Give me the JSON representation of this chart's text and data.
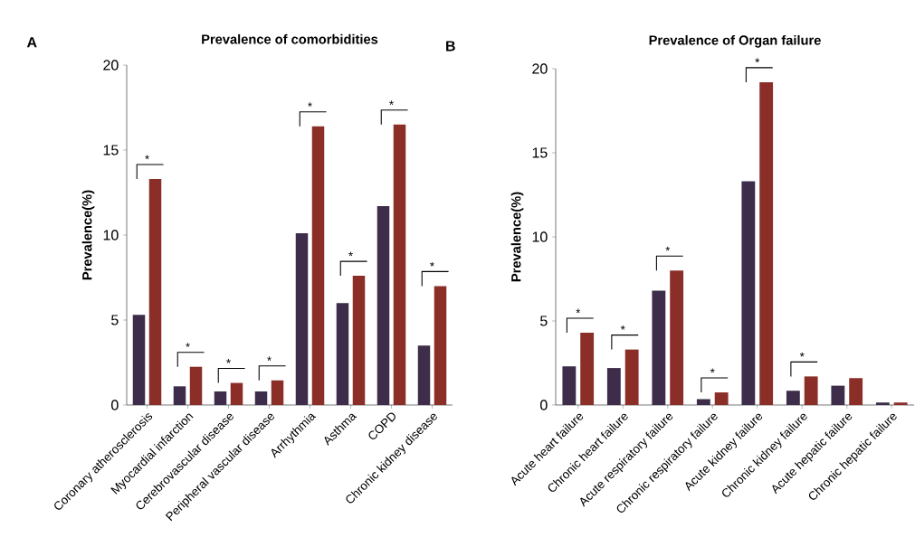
{
  "chart_data": [
    {
      "type": "bar",
      "title": "Prevalence of comorbidities",
      "ylabel": "Prevalence(%)",
      "categories": [
        "Coronary atherosclerosis",
        "Myocardial infarction",
        "Cerebrovascular disease",
        "Peripheral vascular disease",
        "Arrhythmia",
        "Asthma",
        "COPD",
        "Chronic kidney disease"
      ],
      "series": [
        {
          "color": "#3d2d4a",
          "values": [
            5.3,
            1.1,
            0.8,
            0.8,
            10.1,
            6.0,
            11.7,
            3.5
          ]
        },
        {
          "color": "#8b2e28",
          "values": [
            13.3,
            2.25,
            1.3,
            1.45,
            16.4,
            7.6,
            16.5,
            7.0
          ]
        }
      ],
      "ylim": [
        0,
        20
      ],
      "yticks": [
        0,
        5,
        10,
        15,
        20
      ],
      "annotations": [
        "A",
        "*",
        "*",
        "*",
        "*",
        "*",
        "*",
        "*",
        "*"
      ]
    },
    {
      "type": "bar",
      "title": "Prevalence of Organ failure",
      "ylabel": "Prevalence(%)",
      "categories": [
        "Acute heart failure",
        "Chronic heart failure",
        "Acute respiratory failure",
        "Chronic respiratory failure",
        "Acute kidney failure",
        "Chronic kidney failure",
        "Acute hepatic failure",
        "Chronic hepatic failure"
      ],
      "series": [
        {
          "color": "#3d2d4a",
          "values": [
            2.3,
            2.2,
            6.8,
            0.35,
            13.3,
            0.85,
            1.15,
            0.15
          ]
        },
        {
          "color": "#8b2e28",
          "values": [
            4.3,
            3.3,
            8.0,
            0.75,
            19.2,
            1.7,
            1.6,
            0.15
          ]
        }
      ],
      "ylim": [
        0,
        20
      ],
      "yticks": [
        0,
        5,
        10,
        15,
        20
      ],
      "annotations": [
        "B",
        "*",
        "*",
        "*",
        "*",
        "*",
        "*"
      ]
    }
  ]
}
